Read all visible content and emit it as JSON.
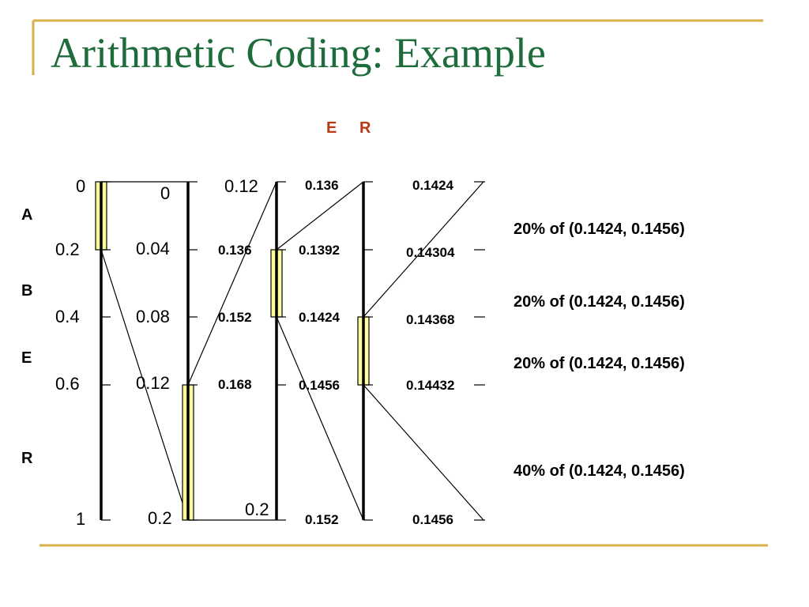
{
  "slide": {
    "title": "Arithmetic Coding: Example",
    "colors": {
      "title": "#1e6b3b",
      "frame": "#d6b04a",
      "highlight": "#ffffa0",
      "header": "#b83a14"
    }
  },
  "header_letters": [
    "E",
    "R"
  ],
  "symbols": [
    "A",
    "B",
    "E",
    "R"
  ],
  "scales": [
    {
      "labels": [
        "0",
        "0.2",
        "0.4",
        "0.6",
        "1"
      ],
      "bold": false
    },
    {
      "labels": [
        "0",
        "0.04",
        "0.08",
        "0.12",
        "0.2"
      ],
      "bold": false
    },
    {
      "labels": [
        "0.12",
        "0.136",
        "0.152",
        "0.168",
        "0.2"
      ],
      "bold": true
    },
    {
      "labels": [
        "0.136",
        "0.1392",
        "0.1424",
        "0.1456",
        "0.152"
      ],
      "bold": true
    },
    {
      "labels": [
        "0.1424",
        "0.14304",
        "0.14368",
        "0.14432",
        "0.1456"
      ],
      "bold": true
    }
  ],
  "notes": [
    "20% of (0.1424, 0.1456)",
    "20% of (0.1424, 0.1456)",
    "20% of (0.1424, 0.1456)",
    "40% of (0.1424, 0.1456)"
  ]
}
